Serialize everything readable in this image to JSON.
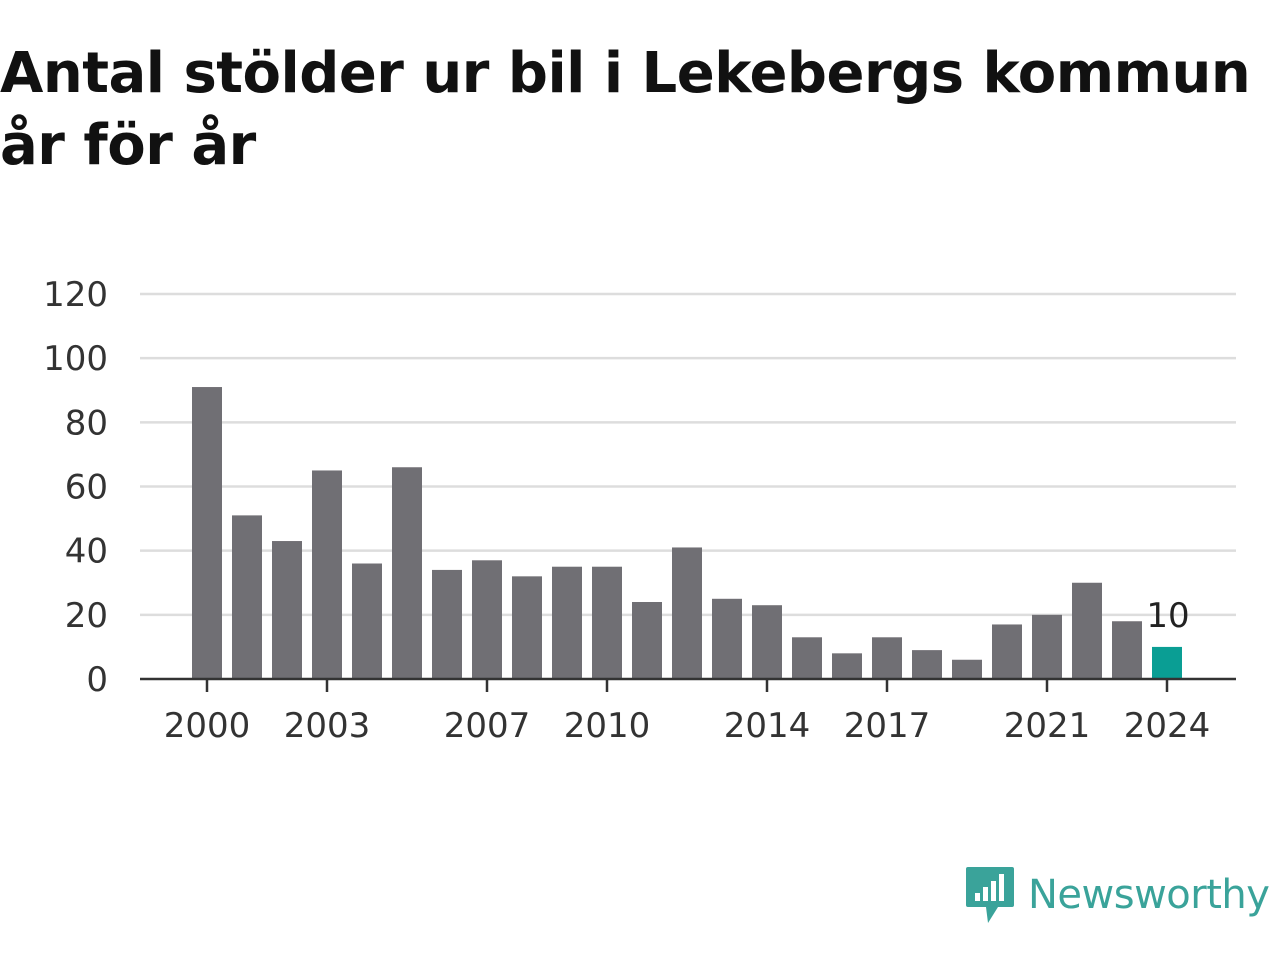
{
  "title_lines": [
    "Antal stölder ur bil i Lekebergs kommun",
    "år för år"
  ],
  "colors": {
    "bar": "#706f74",
    "highlight": "#0a9e94",
    "grid": "#dddddd",
    "axis": "#333333",
    "brand": "#3aa39a"
  },
  "logo": {
    "text": "Newsworthy",
    "icon": "newsworthy-logo-icon"
  },
  "chart_data": {
    "type": "bar",
    "title": "Antal stölder ur bil i Lekebergs kommun år för år",
    "xlabel": "",
    "ylabel": "",
    "categories": [
      "2000",
      "2001",
      "2002",
      "2003",
      "2004",
      "2005",
      "2006",
      "2007",
      "2008",
      "2009",
      "2010",
      "2011",
      "2012",
      "2013",
      "2014",
      "2015",
      "2016",
      "2017",
      "2018",
      "2019",
      "2020",
      "2021",
      "2022",
      "2023",
      "2024"
    ],
    "values": [
      91,
      51,
      43,
      65,
      36,
      66,
      34,
      37,
      32,
      35,
      35,
      24,
      41,
      25,
      23,
      13,
      8,
      13,
      9,
      6,
      17,
      20,
      30,
      18,
      10
    ],
    "highlight_category": "2024",
    "highlight_label": "10",
    "x_tick_labels": [
      "2000",
      "2003",
      "2007",
      "2010",
      "2014",
      "2017",
      "2021",
      "2024"
    ],
    "y_ticks": [
      0,
      20,
      40,
      60,
      80,
      100,
      120
    ],
    "ylim": [
      0,
      120
    ],
    "grid": true,
    "legend": "none"
  }
}
